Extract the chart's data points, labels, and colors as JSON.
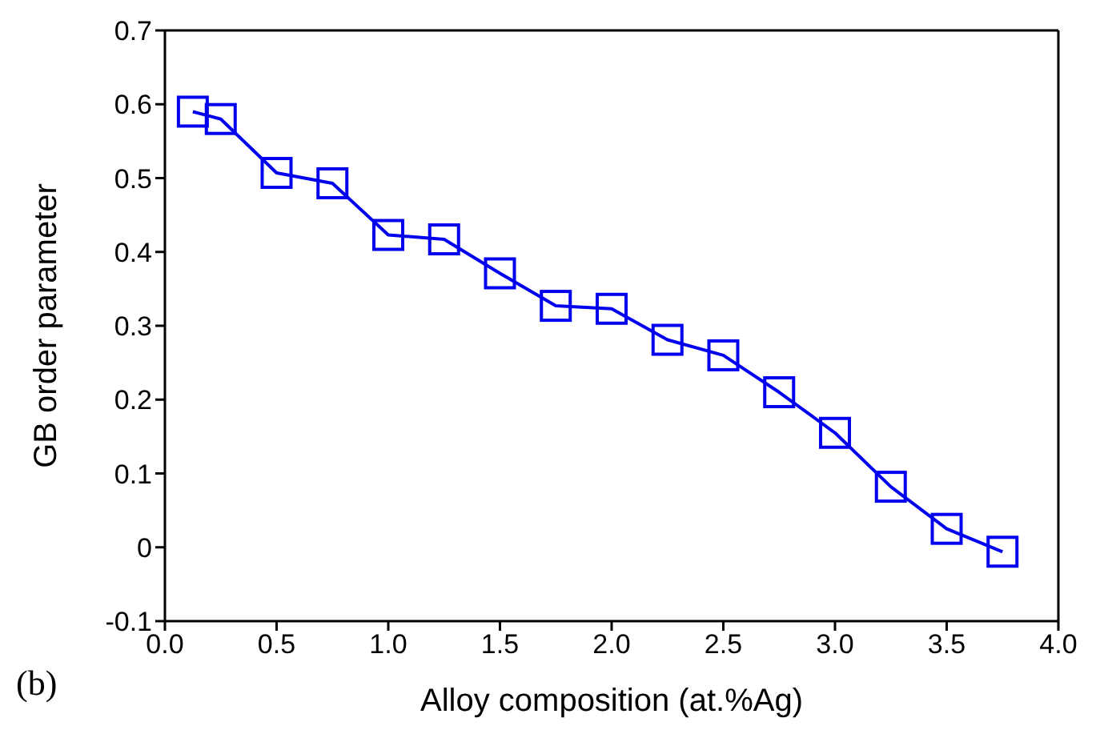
{
  "chart_data": {
    "type": "line",
    "xlabel": "Alloy composition (at.%Ag)",
    "ylabel": "GB order parameter",
    "annotations": [
      "(b)"
    ],
    "x": [
      0.125,
      0.25,
      0.5,
      0.75,
      1.0,
      1.25,
      1.5,
      1.75,
      2.0,
      2.25,
      2.5,
      2.75,
      3.0,
      3.25,
      3.5,
      3.75
    ],
    "series": [
      {
        "color": "#0000ee",
        "values": [
          0.59,
          0.58,
          0.507,
          0.493,
          0.423,
          0.417,
          0.371,
          0.327,
          0.323,
          0.281,
          0.26,
          0.21,
          0.155,
          0.082,
          0.025,
          -0.006
        ]
      }
    ],
    "xlim": [
      0,
      4
    ],
    "xticks": [
      {
        "value": 0,
        "label": "0.0"
      },
      0.5,
      {
        "value": 1,
        "label": "1.0"
      },
      1.5,
      {
        "value": 2,
        "label": "2.0"
      },
      2.5,
      {
        "value": 3,
        "label": "3.0"
      },
      3.5,
      {
        "value": 4,
        "label": "4.0"
      }
    ],
    "ylim": [
      -0.1,
      0.7
    ],
    "yticks": [
      -0.1,
      0,
      0.1,
      0.2,
      0.3,
      0.4,
      0.5,
      0.6,
      0.7
    ],
    "marker": "square",
    "line_style": "solid",
    "grid": false,
    "legend": false
  }
}
